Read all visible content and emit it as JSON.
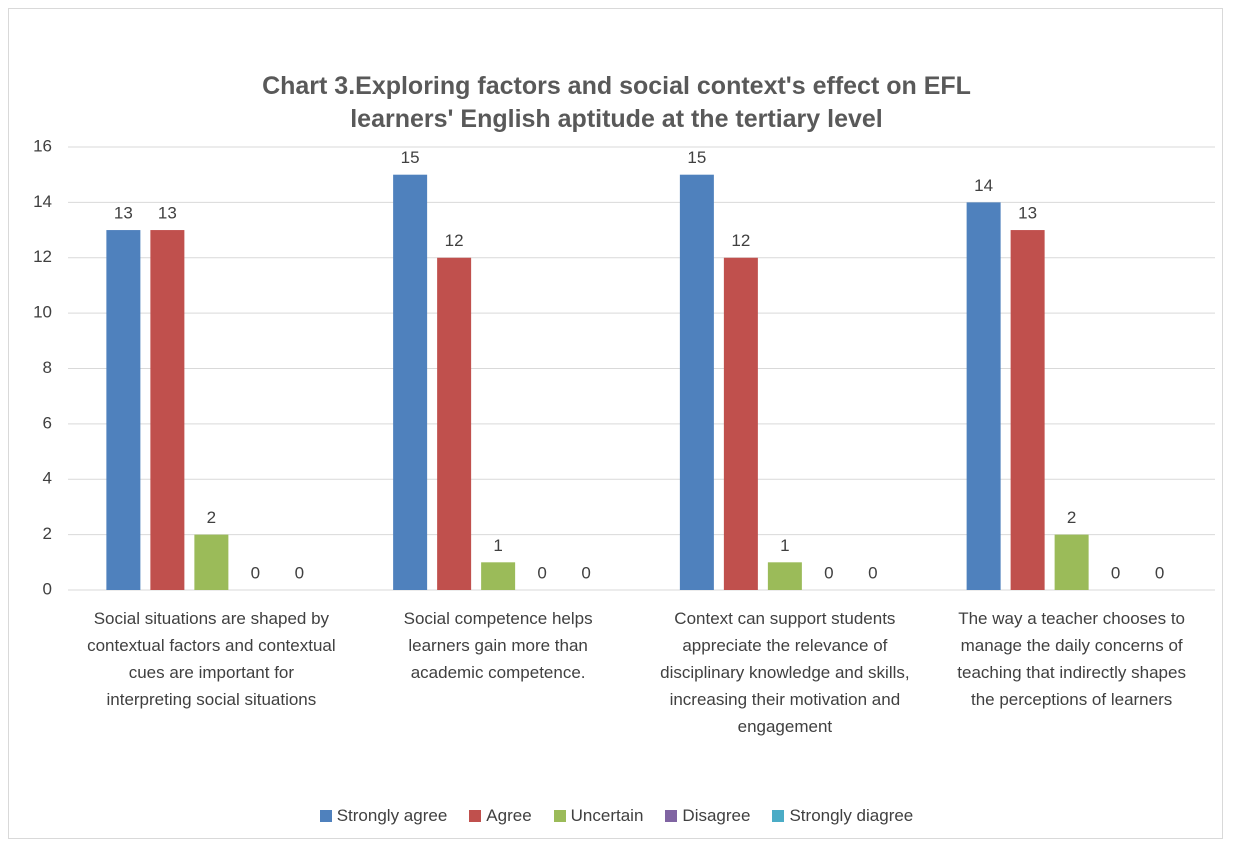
{
  "chart_data": {
    "type": "bar",
    "title": "Chart 3.Exploring factors and social context's effect on EFL learners' English aptitude at the tertiary level",
    "categories": [
      "Social situations are shaped by contextual factors and contextual cues are important for interpreting social situations",
      "Social competence helps learners gain more than academic competence.",
      "Context can support students appreciate the relevance of disciplinary knowledge and skills, increasing their motivation and engagement",
      "The way a teacher chooses to manage the daily concerns of teaching that indirectly shapes the perceptions of learners"
    ],
    "series": [
      {
        "name": "Strongly agree",
        "color": "#4f81bd",
        "values": [
          13,
          15,
          15,
          14
        ]
      },
      {
        "name": "Agree",
        "color": "#c0504d",
        "values": [
          13,
          12,
          12,
          13
        ]
      },
      {
        "name": "Uncertain",
        "color": "#9bbb59",
        "values": [
          2,
          1,
          1,
          2
        ]
      },
      {
        "name": "Disagree",
        "color": "#8064a2",
        "values": [
          0,
          0,
          0,
          0
        ]
      },
      {
        "name": "Strongly diagree",
        "color": "#4bacc6",
        "values": [
          0,
          0,
          0,
          0
        ]
      }
    ],
    "ylim": [
      0,
      16
    ],
    "yticks": [
      0,
      2,
      4,
      6,
      8,
      10,
      12,
      14,
      16
    ],
    "grid": true,
    "legend": "bottom"
  }
}
